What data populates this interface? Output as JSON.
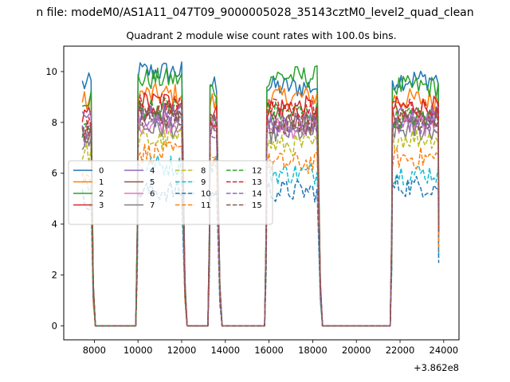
{
  "suptitle": "n file: modeM0/AS1A11_047T09_9000005028_35143cztM0_level2_quad_clean",
  "title": "Quadrant 2 module wise count rates with 100.0s bins.",
  "chart_data": {
    "type": "line",
    "xlim": [
      6600,
      24700
    ],
    "ylim": [
      -0.55,
      11.0
    ],
    "xticks": [
      8000,
      10000,
      12000,
      14000,
      16000,
      18000,
      20000,
      22000,
      24000
    ],
    "yticks": [
      0,
      2,
      4,
      6,
      8,
      10
    ],
    "x_offset_label": "+3.862e8",
    "xlabel": "",
    "ylabel": "",
    "grid": false,
    "legend": {
      "placement": "center-left",
      "columns": 4
    },
    "bin_seconds": 100,
    "on_segments": [
      [
        7450,
        7850
      ],
      [
        10000,
        12050
      ],
      [
        13300,
        13650
      ],
      [
        15900,
        18250
      ],
      [
        21650,
        23750
      ]
    ],
    "transitions": [
      [
        7850,
        8000
      ],
      [
        9900,
        10000
      ],
      [
        12050,
        12150
      ],
      [
        13200,
        13300
      ],
      [
        13650,
        13750
      ],
      [
        15800,
        15900
      ],
      [
        18250,
        18350
      ],
      [
        21550,
        21650
      ]
    ],
    "series": [
      {
        "name": "0",
        "color": "#1f77b4",
        "dash": "solid",
        "levels": [
          9.5,
          10.0,
          9.5,
          9.4,
          9.7
        ]
      },
      {
        "name": "1",
        "color": "#ff7f0e",
        "dash": "solid",
        "levels": [
          8.8,
          9.1,
          8.8,
          9.0,
          8.9
        ]
      },
      {
        "name": "2",
        "color": "#2ca02c",
        "dash": "solid",
        "levels": [
          9.0,
          9.7,
          9.3,
          9.8,
          9.4
        ]
      },
      {
        "name": "3",
        "color": "#d62728",
        "dash": "solid",
        "levels": [
          8.2,
          8.8,
          8.3,
          8.6,
          8.6
        ]
      },
      {
        "name": "4",
        "color": "#9467bd",
        "dash": "solid",
        "levels": [
          8.0,
          8.3,
          8.1,
          8.0,
          8.3
        ]
      },
      {
        "name": "5",
        "color": "#8c564b",
        "dash": "solid",
        "levels": [
          7.6,
          8.4,
          7.9,
          8.1,
          8.2
        ]
      },
      {
        "name": "6",
        "color": "#e377c2",
        "dash": "solid",
        "levels": [
          7.4,
          8.0,
          7.8,
          7.8,
          7.9
        ]
      },
      {
        "name": "7",
        "color": "#7f7f7f",
        "dash": "solid",
        "levels": [
          7.2,
          7.8,
          7.7,
          7.6,
          7.7
        ]
      },
      {
        "name": "8",
        "color": "#bcbd22",
        "dash": "dashed",
        "levels": [
          6.8,
          7.3,
          7.0,
          7.1,
          7.4
        ]
      },
      {
        "name": "9",
        "color": "#17becf",
        "dash": "dashed",
        "levels": [
          5.6,
          6.3,
          6.4,
          6.0,
          6.0
        ]
      },
      {
        "name": "10",
        "color": "#1f77b4",
        "dash": "dashed",
        "levels": [
          5.0,
          5.3,
          5.2,
          5.3,
          5.5
        ]
      },
      {
        "name": "11",
        "color": "#ff7f0e",
        "dash": "dashed",
        "levels": [
          5.8,
          6.8,
          6.5,
          6.4,
          6.6
        ]
      },
      {
        "name": "12",
        "color": "#2ca02c",
        "dash": "dashed",
        "levels": [
          7.8,
          8.6,
          8.0,
          8.4,
          8.2
        ]
      },
      {
        "name": "13",
        "color": "#d62728",
        "dash": "dashed",
        "levels": [
          7.9,
          8.7,
          8.1,
          8.5,
          8.5
        ]
      },
      {
        "name": "14",
        "color": "#9467bd",
        "dash": "dashed",
        "levels": [
          7.5,
          8.2,
          7.8,
          7.9,
          8.0
        ]
      },
      {
        "name": "15",
        "color": "#8c564b",
        "dash": "dashed",
        "levels": [
          7.7,
          8.2,
          8.0,
          8.0,
          8.1
        ]
      }
    ]
  }
}
